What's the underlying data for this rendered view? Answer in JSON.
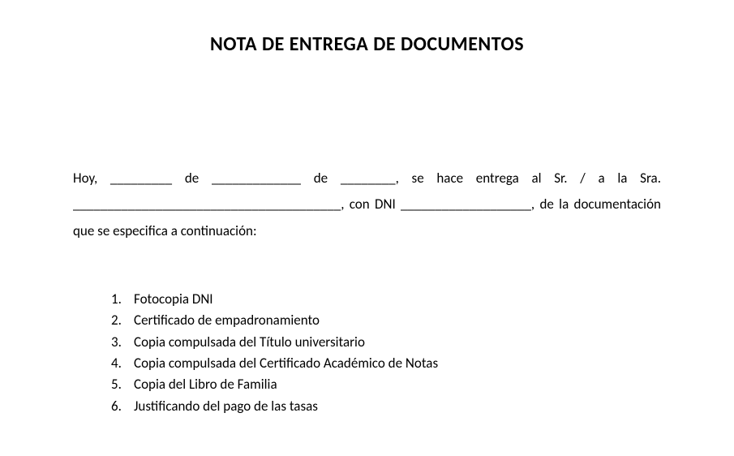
{
  "title": "NOTA DE ENTREGA DE DOCUMENTOS",
  "paragraph": "Hoy, _________ de _____________ de ________, se hace entrega al Sr. / a la Sra. _______________________________________, con DNI ___________________, de la documentación que se especifica a continuación:",
  "items": [
    "Fotocopia DNI",
    "Certificado de empadronamiento",
    "Copia compulsada del Título universitario",
    "Copia compulsada del Certificado Académico de Notas",
    "Copia del Libro de Familia",
    "Justificando del pago de las tasas"
  ],
  "colors": {
    "background": "#ffffff",
    "text": "#000000"
  },
  "typography": {
    "title_fontsize": 24,
    "title_weight": "bold",
    "body_fontsize": 17,
    "font_family": "Calibri"
  }
}
